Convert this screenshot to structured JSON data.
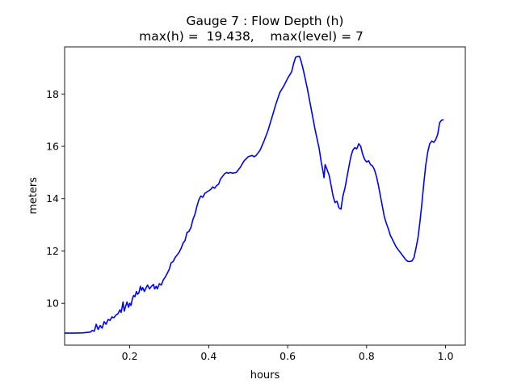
{
  "chart_data": {
    "type": "line",
    "title_line1": "Gauge 7 : Flow Depth (h)",
    "title_line2": "max(h) =  19.438,    max(level) = 7",
    "xlabel": "hours",
    "ylabel": "meters",
    "xlim": [
      0.035,
      1.05
    ],
    "ylim": [
      8.4,
      19.8
    ],
    "xticks": [
      0.2,
      0.4,
      0.6,
      0.8,
      1.0
    ],
    "xtick_labels": [
      "0.2",
      "0.4",
      "0.6",
      "0.8",
      "1.0"
    ],
    "yticks": [
      10,
      12,
      14,
      16,
      18
    ],
    "ytick_labels": [
      "10",
      "12",
      "14",
      "16",
      "18"
    ],
    "grid": false,
    "colors": {
      "line": "#0000ff",
      "axes": "#000000",
      "background": "#ffffff"
    },
    "series": [
      {
        "points": [
          [
            0.035,
            8.86
          ],
          [
            0.06,
            8.86
          ],
          [
            0.08,
            8.87
          ],
          [
            0.1,
            8.9
          ],
          [
            0.105,
            8.96
          ],
          [
            0.11,
            8.93
          ],
          [
            0.115,
            9.2
          ],
          [
            0.12,
            9.0
          ],
          [
            0.125,
            9.15
          ],
          [
            0.13,
            9.05
          ],
          [
            0.135,
            9.3
          ],
          [
            0.14,
            9.2
          ],
          [
            0.145,
            9.38
          ],
          [
            0.15,
            9.35
          ],
          [
            0.155,
            9.48
          ],
          [
            0.16,
            9.45
          ],
          [
            0.165,
            9.55
          ],
          [
            0.17,
            9.6
          ],
          [
            0.175,
            9.75
          ],
          [
            0.178,
            9.65
          ],
          [
            0.18,
            9.8
          ],
          [
            0.183,
            10.05
          ],
          [
            0.186,
            9.7
          ],
          [
            0.19,
            9.9
          ],
          [
            0.193,
            10.05
          ],
          [
            0.197,
            9.85
          ],
          [
            0.2,
            10.0
          ],
          [
            0.203,
            9.92
          ],
          [
            0.207,
            10.2
          ],
          [
            0.21,
            10.3
          ],
          [
            0.213,
            10.25
          ],
          [
            0.217,
            10.45
          ],
          [
            0.22,
            10.35
          ],
          [
            0.223,
            10.4
          ],
          [
            0.227,
            10.65
          ],
          [
            0.23,
            10.5
          ],
          [
            0.233,
            10.6
          ],
          [
            0.237,
            10.45
          ],
          [
            0.24,
            10.55
          ],
          [
            0.245,
            10.7
          ],
          [
            0.25,
            10.55
          ],
          [
            0.255,
            10.65
          ],
          [
            0.26,
            10.72
          ],
          [
            0.263,
            10.55
          ],
          [
            0.267,
            10.65
          ],
          [
            0.27,
            10.55
          ],
          [
            0.275,
            10.75
          ],
          [
            0.28,
            10.7
          ],
          [
            0.285,
            10.9
          ],
          [
            0.29,
            11.0
          ],
          [
            0.295,
            11.15
          ],
          [
            0.3,
            11.3
          ],
          [
            0.305,
            11.55
          ],
          [
            0.31,
            11.6
          ],
          [
            0.315,
            11.75
          ],
          [
            0.32,
            11.85
          ],
          [
            0.325,
            11.95
          ],
          [
            0.33,
            12.1
          ],
          [
            0.335,
            12.3
          ],
          [
            0.34,
            12.4
          ],
          [
            0.345,
            12.7
          ],
          [
            0.35,
            12.75
          ],
          [
            0.355,
            12.9
          ],
          [
            0.36,
            13.2
          ],
          [
            0.365,
            13.4
          ],
          [
            0.37,
            13.7
          ],
          [
            0.375,
            13.95
          ],
          [
            0.38,
            14.1
          ],
          [
            0.385,
            14.05
          ],
          [
            0.39,
            14.2
          ],
          [
            0.395,
            14.25
          ],
          [
            0.4,
            14.3
          ],
          [
            0.405,
            14.35
          ],
          [
            0.41,
            14.45
          ],
          [
            0.415,
            14.4
          ],
          [
            0.42,
            14.5
          ],
          [
            0.425,
            14.55
          ],
          [
            0.43,
            14.75
          ],
          [
            0.435,
            14.85
          ],
          [
            0.44,
            14.95
          ],
          [
            0.445,
            15.0
          ],
          [
            0.45,
            14.97
          ],
          [
            0.455,
            15.0
          ],
          [
            0.46,
            14.97
          ],
          [
            0.47,
            15.0
          ],
          [
            0.475,
            15.1
          ],
          [
            0.48,
            15.2
          ],
          [
            0.49,
            15.45
          ],
          [
            0.5,
            15.6
          ],
          [
            0.51,
            15.65
          ],
          [
            0.515,
            15.6
          ],
          [
            0.52,
            15.65
          ],
          [
            0.53,
            15.85
          ],
          [
            0.54,
            16.2
          ],
          [
            0.55,
            16.6
          ],
          [
            0.56,
            17.1
          ],
          [
            0.57,
            17.6
          ],
          [
            0.58,
            18.05
          ],
          [
            0.59,
            18.3
          ],
          [
            0.6,
            18.6
          ],
          [
            0.61,
            18.85
          ],
          [
            0.615,
            19.15
          ],
          [
            0.62,
            19.4
          ],
          [
            0.625,
            19.44
          ],
          [
            0.63,
            19.44
          ],
          [
            0.635,
            19.2
          ],
          [
            0.64,
            18.9
          ],
          [
            0.65,
            18.2
          ],
          [
            0.66,
            17.4
          ],
          [
            0.67,
            16.6
          ],
          [
            0.68,
            15.9
          ],
          [
            0.685,
            15.4
          ],
          [
            0.69,
            15.0
          ],
          [
            0.692,
            14.8
          ],
          [
            0.695,
            15.3
          ],
          [
            0.7,
            15.1
          ],
          [
            0.705,
            14.9
          ],
          [
            0.71,
            14.5
          ],
          [
            0.715,
            14.1
          ],
          [
            0.72,
            13.85
          ],
          [
            0.725,
            13.9
          ],
          [
            0.73,
            13.65
          ],
          [
            0.735,
            13.6
          ],
          [
            0.74,
            14.1
          ],
          [
            0.745,
            14.4
          ],
          [
            0.75,
            14.8
          ],
          [
            0.755,
            15.2
          ],
          [
            0.76,
            15.6
          ],
          [
            0.765,
            15.85
          ],
          [
            0.77,
            15.95
          ],
          [
            0.775,
            15.9
          ],
          [
            0.78,
            16.1
          ],
          [
            0.785,
            16.0
          ],
          [
            0.79,
            15.7
          ],
          [
            0.795,
            15.5
          ],
          [
            0.8,
            15.4
          ],
          [
            0.805,
            15.45
          ],
          [
            0.81,
            15.3
          ],
          [
            0.815,
            15.25
          ],
          [
            0.82,
            15.1
          ],
          [
            0.825,
            14.85
          ],
          [
            0.83,
            14.5
          ],
          [
            0.835,
            14.1
          ],
          [
            0.84,
            13.7
          ],
          [
            0.845,
            13.3
          ],
          [
            0.85,
            13.05
          ],
          [
            0.855,
            12.85
          ],
          [
            0.86,
            12.6
          ],
          [
            0.865,
            12.45
          ],
          [
            0.87,
            12.3
          ],
          [
            0.875,
            12.15
          ],
          [
            0.88,
            12.05
          ],
          [
            0.885,
            11.95
          ],
          [
            0.89,
            11.85
          ],
          [
            0.895,
            11.75
          ],
          [
            0.9,
            11.65
          ],
          [
            0.905,
            11.6
          ],
          [
            0.91,
            11.6
          ],
          [
            0.915,
            11.62
          ],
          [
            0.92,
            11.75
          ],
          [
            0.925,
            12.1
          ],
          [
            0.93,
            12.5
          ],
          [
            0.935,
            13.1
          ],
          [
            0.94,
            13.8
          ],
          [
            0.945,
            14.6
          ],
          [
            0.95,
            15.3
          ],
          [
            0.955,
            15.8
          ],
          [
            0.96,
            16.1
          ],
          [
            0.965,
            16.2
          ],
          [
            0.97,
            16.15
          ],
          [
            0.975,
            16.25
          ],
          [
            0.98,
            16.45
          ],
          [
            0.985,
            16.9
          ],
          [
            0.99,
            17.0
          ],
          [
            0.995,
            17.02
          ]
        ]
      }
    ]
  }
}
